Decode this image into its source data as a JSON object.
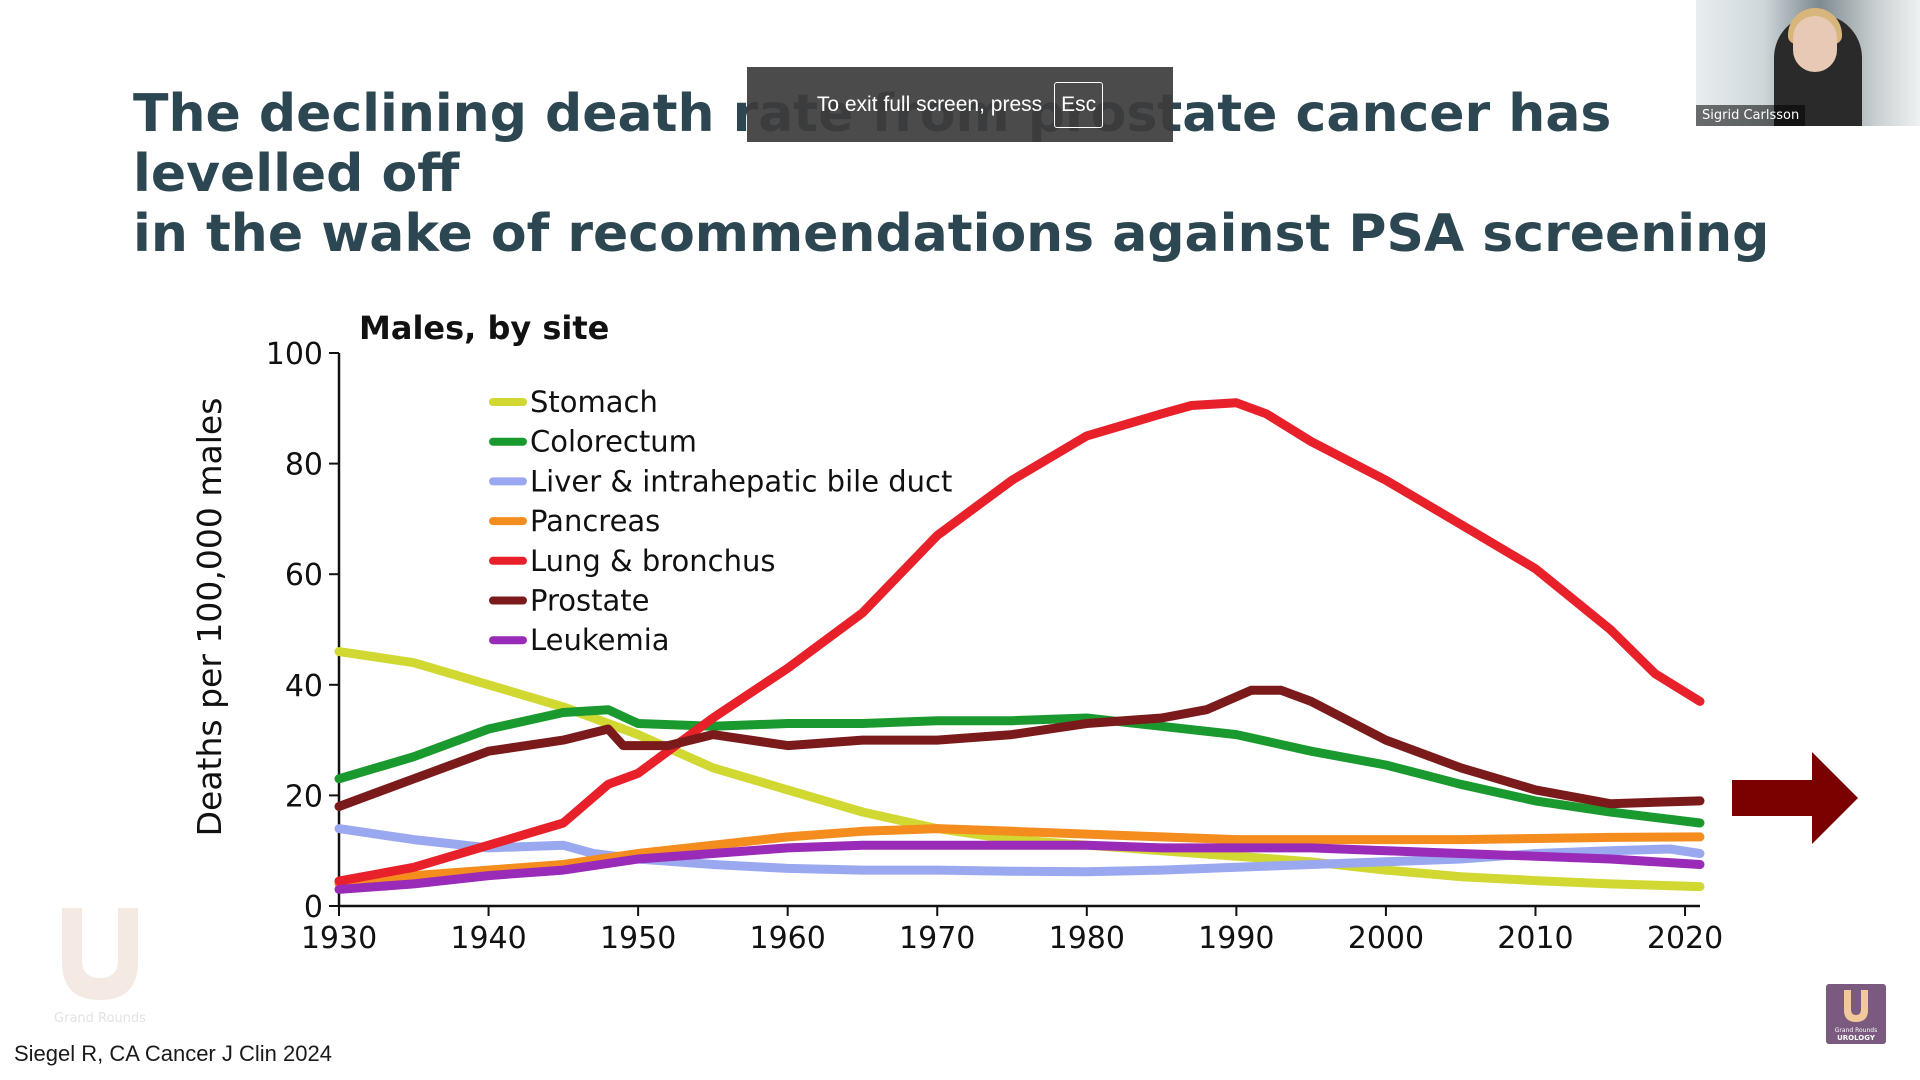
{
  "slide": {
    "title_line1": "The declining death rate from prostate cancer has levelled off",
    "title_line2": "in the wake of recommendations against PSA screening",
    "citation": "Siegel R, CA Cancer J Clin 2024"
  },
  "fullscreen_toast": {
    "text": "To exit full screen, press",
    "key": "Esc"
  },
  "video": {
    "participant_name": "Sigrid Carlsson"
  },
  "logo": {
    "line1": "Grand Rounds",
    "line2": "UROLOGY"
  },
  "icons": [
    "arrow-right-icon",
    "logo-icon"
  ],
  "colors": {
    "title": "#2c4752",
    "arrow": "#7b0000"
  },
  "chart_data": {
    "type": "line",
    "title": "Males, by site",
    "xlabel": "",
    "ylabel": "Deaths per 100,000 males",
    "xlim": [
      1930,
      2021
    ],
    "ylim": [
      0,
      100
    ],
    "xticks": [
      1930,
      1940,
      1950,
      1960,
      1970,
      1980,
      1990,
      2000,
      2010,
      2020
    ],
    "yticks": [
      0,
      20,
      40,
      60,
      80,
      100
    ],
    "grid": false,
    "legend": "top-left",
    "series": [
      {
        "name": "Stomach",
        "color": "#d2d832",
        "x": [
          1930,
          1935,
          1940,
          1945,
          1950,
          1955,
          1960,
          1965,
          1970,
          1975,
          1980,
          1985,
          1990,
          1995,
          2000,
          2005,
          2010,
          2015,
          2021
        ],
        "y": [
          46,
          44,
          40,
          36,
          31,
          25,
          21,
          17,
          14,
          12,
          11,
          10,
          9,
          8,
          6.5,
          5.3,
          4.6,
          4,
          3.5
        ]
      },
      {
        "name": "Colorectum",
        "color": "#1a9a2e",
        "x": [
          1930,
          1935,
          1940,
          1945,
          1948,
          1950,
          1955,
          1960,
          1965,
          1970,
          1975,
          1980,
          1985,
          1990,
          1995,
          2000,
          2005,
          2010,
          2015,
          2021
        ],
        "y": [
          23,
          27,
          32,
          35,
          35.5,
          33,
          32.5,
          33,
          33,
          33.5,
          33.5,
          34,
          32.5,
          31,
          28,
          25.5,
          22,
          19,
          17,
          15
        ]
      },
      {
        "name": "Liver & intrahepatic bile duct",
        "color": "#9aa8f0",
        "x": [
          1930,
          1935,
          1940,
          1945,
          1947,
          1950,
          1955,
          1960,
          1965,
          1970,
          1975,
          1980,
          1985,
          1990,
          1995,
          2000,
          2005,
          2010,
          2015,
          2019,
          2021
        ],
        "y": [
          14,
          12,
          10.5,
          11,
          9.5,
          8.5,
          7.5,
          6.8,
          6.5,
          6.5,
          6.3,
          6.2,
          6.5,
          7,
          7.5,
          8,
          8.5,
          9.5,
          10,
          10.3,
          9.5
        ]
      },
      {
        "name": "Pancreas",
        "color": "#f58c1e",
        "x": [
          1930,
          1935,
          1940,
          1945,
          1950,
          1955,
          1960,
          1965,
          1970,
          1975,
          1980,
          1985,
          1990,
          1995,
          2000,
          2005,
          2010,
          2015,
          2021
        ],
        "y": [
          4,
          5.5,
          6.5,
          7.5,
          9.5,
          11,
          12.5,
          13.5,
          14,
          13.5,
          13,
          12.5,
          12,
          12,
          12,
          12,
          12.2,
          12.4,
          12.5
        ]
      },
      {
        "name": "Lung & bronchus",
        "color": "#e8202a",
        "x": [
          1930,
          1935,
          1940,
          1945,
          1948,
          1950,
          1955,
          1960,
          1965,
          1970,
          1975,
          1980,
          1985,
          1987,
          1990,
          1992,
          1995,
          2000,
          2005,
          2010,
          2015,
          2018,
          2021
        ],
        "y": [
          4.5,
          7,
          11,
          15,
          22,
          24,
          34,
          43,
          53,
          67,
          77,
          85,
          89,
          90.5,
          91,
          89,
          84,
          77,
          69,
          61,
          50,
          42,
          37
        ]
      },
      {
        "name": "Prostate",
        "color": "#7b1a1a",
        "x": [
          1930,
          1935,
          1940,
          1945,
          1948,
          1949,
          1952,
          1955,
          1960,
          1965,
          1970,
          1975,
          1980,
          1985,
          1988,
          1991,
          1993,
          1995,
          2000,
          2005,
          2010,
          2015,
          2021
        ],
        "y": [
          18,
          23,
          28,
          30,
          32,
          29,
          29,
          31,
          29,
          30,
          30,
          31,
          33,
          34,
          35.5,
          39,
          39,
          37,
          30,
          25,
          21,
          18.5,
          19
        ]
      },
      {
        "name": "Leukemia",
        "color": "#9a2ab8",
        "x": [
          1930,
          1935,
          1940,
          1945,
          1950,
          1955,
          1960,
          1965,
          1970,
          1975,
          1980,
          1985,
          1990,
          1995,
          2000,
          2005,
          2010,
          2015,
          2021
        ],
        "y": [
          3,
          4,
          5.5,
          6.5,
          8.5,
          9.5,
          10.5,
          11,
          11,
          11,
          11,
          10.5,
          10.5,
          10.5,
          10,
          9.5,
          9,
          8.5,
          7.5
        ]
      }
    ]
  }
}
